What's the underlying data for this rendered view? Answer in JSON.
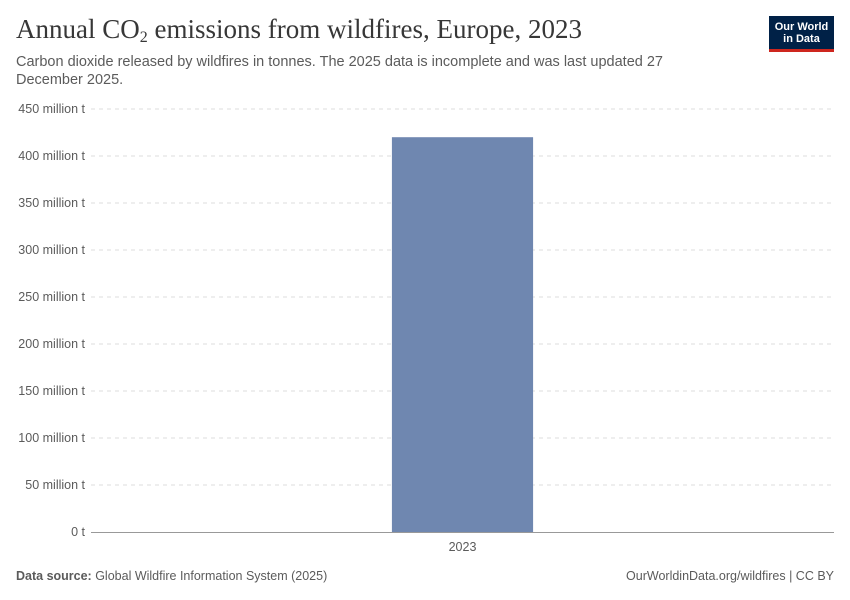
{
  "header": {
    "title_pre": "Annual CO",
    "title_sub": "2",
    "title_post": " emissions from wildfires, Europe, 2023",
    "subtitle": "Carbon dioxide released by wildfires in tonnes. The 2025 data is incomplete and was last updated 27 December 2025."
  },
  "logo": {
    "line1": "Our World",
    "line2": "in Data"
  },
  "footer": {
    "source_label": "Data source:",
    "source_text": " Global Wildfire Information System (2025)",
    "credit": "OurWorldinData.org/wildfires | CC BY"
  },
  "colors": {
    "bar": "#6f87b0",
    "grid": "#dddddd",
    "axis": "#999999"
  },
  "chart_data": {
    "type": "bar",
    "title": "Annual CO2 emissions from wildfires, Europe, 2023",
    "categories": [
      "2023"
    ],
    "values": [
      420000000
    ],
    "unit": "t",
    "ylim": [
      0,
      450000000
    ],
    "yticks": [
      0,
      50000000,
      100000000,
      150000000,
      200000000,
      250000000,
      300000000,
      350000000,
      400000000,
      450000000
    ],
    "ytick_labels": [
      "0 t",
      "50 million t",
      "100 million t",
      "150 million t",
      "200 million t",
      "250 million t",
      "300 million t",
      "350 million t",
      "400 million t",
      "450 million t"
    ],
    "grid": true,
    "legend": "none"
  }
}
